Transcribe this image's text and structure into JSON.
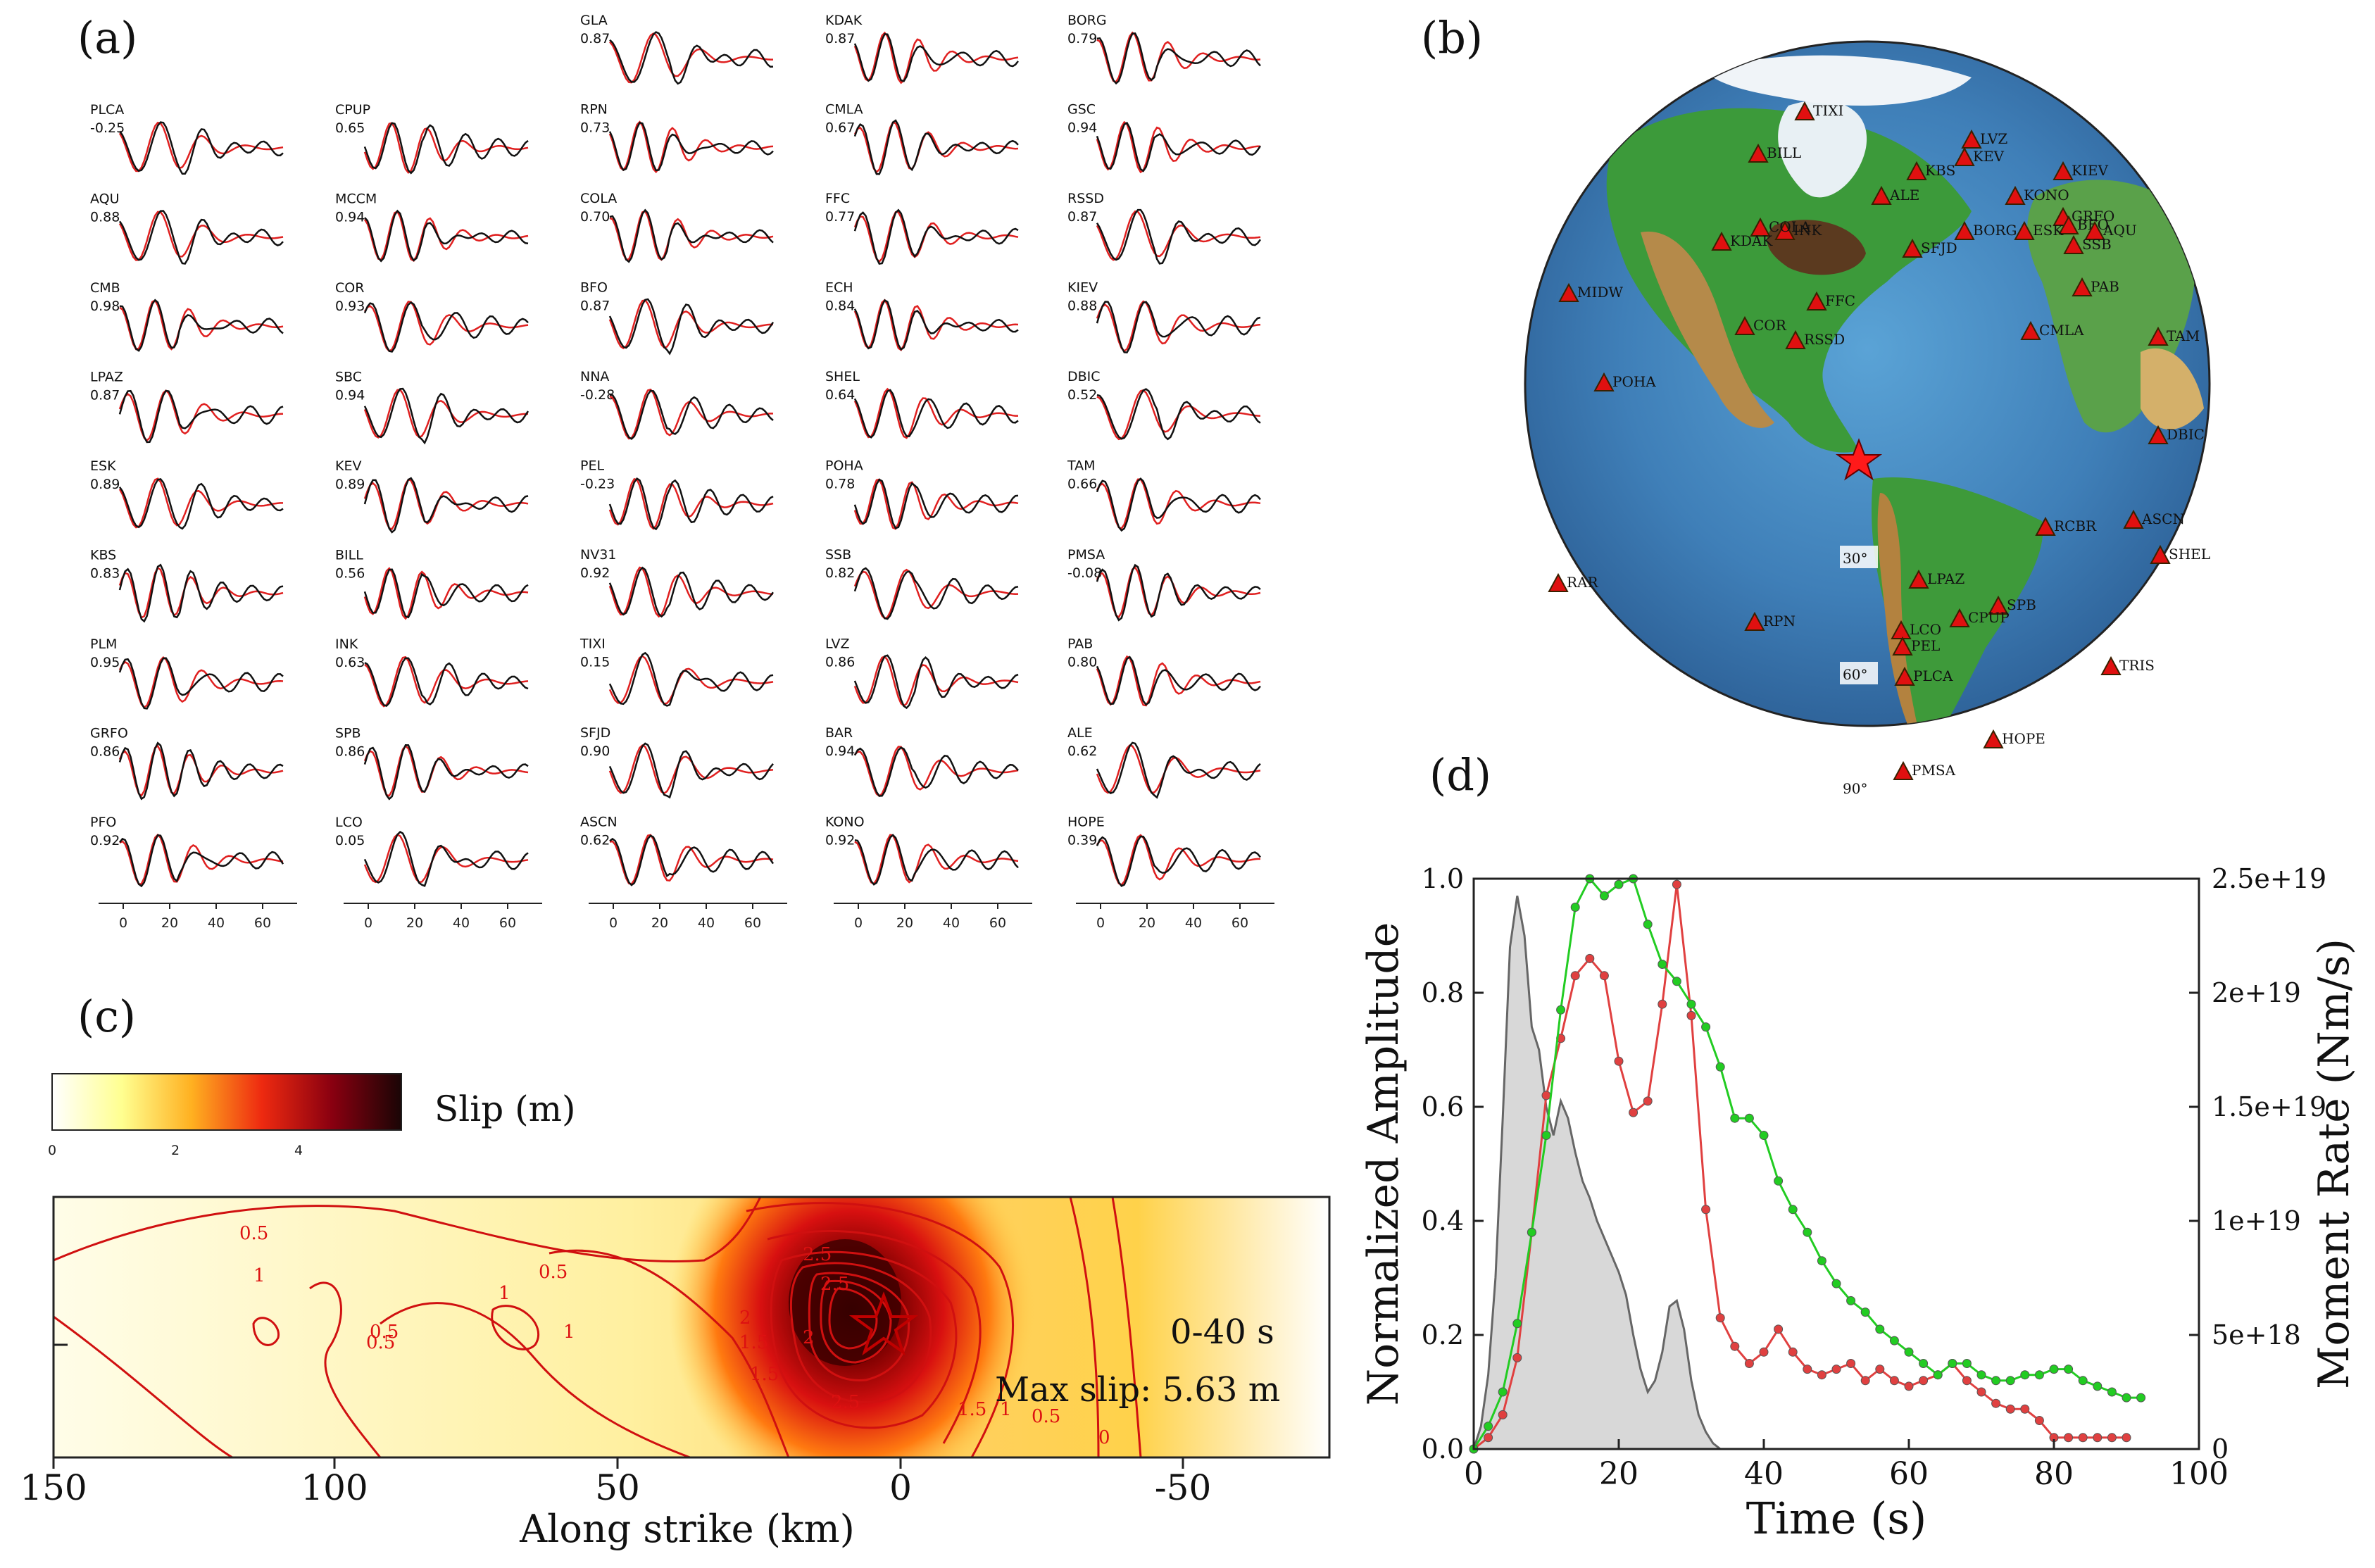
{
  "labels": {
    "a": "(a)",
    "b": "(b)",
    "c": "(c)",
    "d": "(d)"
  },
  "colors": {
    "observed": "#111111",
    "synthetic": "#e02020",
    "contour": "#d01010",
    "green": "#22cc22",
    "red_stf": "#e04040",
    "gray": "#888888"
  },
  "panel_a": {
    "x_ticks": [
      "0",
      "20",
      "40",
      "60"
    ],
    "columns": [
      [
        {
          "name": "PLCA",
          "cc": "-0.25"
        },
        {
          "name": "AQU",
          "cc": "0.88"
        },
        {
          "name": "CMB",
          "cc": "0.98"
        },
        {
          "name": "LPAZ",
          "cc": "0.87"
        },
        {
          "name": "ESK",
          "cc": "0.89"
        },
        {
          "name": "KBS",
          "cc": "0.83"
        },
        {
          "name": "PLM",
          "cc": "0.95"
        },
        {
          "name": "GRFO",
          "cc": "0.86"
        },
        {
          "name": "PFO",
          "cc": "0.92"
        }
      ],
      [
        {
          "name": "CPUP",
          "cc": "0.65"
        },
        {
          "name": "MCCM",
          "cc": "0.94"
        },
        {
          "name": "COR",
          "cc": "0.93"
        },
        {
          "name": "SBC",
          "cc": "0.94"
        },
        {
          "name": "KEV",
          "cc": "0.89"
        },
        {
          "name": "BILL",
          "cc": "0.56"
        },
        {
          "name": "INK",
          "cc": "0.63"
        },
        {
          "name": "SPB",
          "cc": "0.86"
        },
        {
          "name": "LCO",
          "cc": "0.05"
        }
      ],
      [
        {
          "name": "GLA",
          "cc": "0.87"
        },
        {
          "name": "RPN",
          "cc": "0.73"
        },
        {
          "name": "COLA",
          "cc": "0.70"
        },
        {
          "name": "BFO",
          "cc": "0.87"
        },
        {
          "name": "NNA",
          "cc": "-0.28"
        },
        {
          "name": "PEL",
          "cc": "-0.23"
        },
        {
          "name": "NV31",
          "cc": "0.92"
        },
        {
          "name": "TIXI",
          "cc": "0.15"
        },
        {
          "name": "SFJD",
          "cc": "0.90"
        },
        {
          "name": "ASCN",
          "cc": "0.62"
        }
      ],
      [
        {
          "name": "KDAK",
          "cc": "0.87"
        },
        {
          "name": "CMLA",
          "cc": "0.67"
        },
        {
          "name": "FFC",
          "cc": "0.77"
        },
        {
          "name": "ECH",
          "cc": "0.84"
        },
        {
          "name": "SHEL",
          "cc": "0.64"
        },
        {
          "name": "POHA",
          "cc": "0.78"
        },
        {
          "name": "SSB",
          "cc": "0.82"
        },
        {
          "name": "LVZ",
          "cc": "0.86"
        },
        {
          "name": "BAR",
          "cc": "0.94"
        },
        {
          "name": "KONO",
          "cc": "0.92"
        }
      ],
      [
        {
          "name": "BORG",
          "cc": "0.79"
        },
        {
          "name": "GSC",
          "cc": "0.94"
        },
        {
          "name": "RSSD",
          "cc": "0.87"
        },
        {
          "name": "KIEV",
          "cc": "0.88"
        },
        {
          "name": "DBIC",
          "cc": "0.52"
        },
        {
          "name": "TAM",
          "cc": "0.66"
        },
        {
          "name": "PMSA",
          "cc": "-0.08"
        },
        {
          "name": "PAB",
          "cc": "0.80"
        },
        {
          "name": "ALE",
          "cc": "0.62"
        },
        {
          "name": "HOPE",
          "cc": "0.39"
        }
      ]
    ]
  },
  "panel_b": {
    "lat_labels": [
      "30°",
      "60°",
      "90°"
    ],
    "stations": [
      "TIXI",
      "BILL",
      "KBS",
      "LVZ",
      "KEV",
      "KIEV",
      "ALE",
      "KONO",
      "GRFO",
      "BFO",
      "AQU",
      "ESK",
      "SSB",
      "INK",
      "COLA",
      "KDAK",
      "SFJD",
      "BORG",
      "MIDW",
      "FFC",
      "PAB",
      "TAM",
      "COR",
      "RSSD",
      "CMLA",
      "POHA",
      "DBIC",
      "ASCN",
      "RCBR",
      "SHEL",
      "LPAZ",
      "RAR",
      "RPN",
      "SPB",
      "CPUP",
      "LCO",
      "PEL",
      "TRIS",
      "PLCA",
      "HOPE",
      "PMSA"
    ]
  },
  "panel_c": {
    "colorbar_title": "Slip (m)",
    "colorbar_ticks": [
      "0",
      "2",
      "4"
    ],
    "time_window": "0-40 s",
    "max_slip": "Max slip: 5.63 m",
    "xlabel": "Along strike (km)",
    "x_ticks": [
      "150",
      "100",
      "50",
      "0",
      "-50"
    ],
    "contour_labels": [
      "0.5",
      "0.5",
      "1",
      "0.5",
      "1",
      "0.5",
      "1",
      "1.5",
      "2",
      "2.5",
      "2.5",
      "2",
      "1.5",
      "2.5",
      "1.5",
      "1",
      "0.5",
      "0"
    ]
  },
  "chart_data": {
    "type": "line",
    "title": "",
    "xlabel": "Time (s)",
    "ylabel": "Normalized Amplitude",
    "y2label": "Moment Rate (Nm/s)",
    "xlim": [
      0,
      100
    ],
    "ylim": [
      0,
      1.0
    ],
    "y2lim": [
      0,
      2.5e+19
    ],
    "x_ticks": [
      "0",
      "20",
      "40",
      "60",
      "80",
      "100"
    ],
    "y_ticks": [
      "0.0",
      "0.2",
      "0.4",
      "0.6",
      "0.8",
      "1.0"
    ],
    "y2_ticks": [
      "0",
      "5e+18",
      "1e+19",
      "1.5e+19",
      "2e+19",
      "2.5e+19"
    ],
    "series": [
      {
        "name": "moment rate (gray)",
        "style": "filled-area",
        "x": [
          0,
          1,
          2,
          3,
          4,
          5,
          6,
          7,
          8,
          9,
          10,
          11,
          12,
          13,
          14,
          15,
          16,
          17,
          18,
          19,
          20,
          21,
          22,
          23,
          24,
          25,
          26,
          27,
          28,
          29,
          30,
          31,
          32,
          33,
          34
        ],
        "y": [
          0.0,
          0.04,
          0.13,
          0.3,
          0.58,
          0.88,
          0.97,
          0.9,
          0.74,
          0.7,
          0.6,
          0.55,
          0.61,
          0.58,
          0.52,
          0.47,
          0.44,
          0.4,
          0.37,
          0.34,
          0.31,
          0.27,
          0.2,
          0.14,
          0.1,
          0.12,
          0.17,
          0.25,
          0.26,
          0.21,
          0.12,
          0.06,
          0.03,
          0.01,
          0.0
        ]
      },
      {
        "name": "red",
        "style": "dotted-line",
        "x": [
          0,
          2,
          4,
          6,
          8,
          10,
          12,
          14,
          16,
          18,
          20,
          22,
          24,
          26,
          28,
          30,
          32,
          34,
          36,
          38,
          40,
          42,
          44,
          46,
          48,
          50,
          52,
          54,
          56,
          58,
          60,
          62,
          64,
          66,
          68,
          70,
          72,
          74,
          76,
          78,
          80,
          82,
          84,
          86,
          88,
          90
        ],
        "y": [
          0.0,
          0.02,
          0.06,
          0.16,
          0.38,
          0.62,
          0.72,
          0.83,
          0.86,
          0.83,
          0.68,
          0.59,
          0.61,
          0.78,
          0.99,
          0.76,
          0.42,
          0.23,
          0.18,
          0.15,
          0.17,
          0.21,
          0.17,
          0.14,
          0.13,
          0.14,
          0.15,
          0.12,
          0.14,
          0.12,
          0.11,
          0.12,
          0.13,
          0.15,
          0.12,
          0.1,
          0.08,
          0.07,
          0.07,
          0.05,
          0.02,
          0.02,
          0.02,
          0.02,
          0.02,
          0.02
        ]
      },
      {
        "name": "green",
        "style": "dotted-line",
        "x": [
          0,
          2,
          4,
          6,
          8,
          10,
          12,
          14,
          16,
          18,
          20,
          22,
          24,
          26,
          28,
          30,
          32,
          34,
          36,
          38,
          40,
          42,
          44,
          46,
          48,
          50,
          52,
          54,
          56,
          58,
          60,
          62,
          64,
          66,
          68,
          70,
          72,
          74,
          76,
          78,
          80,
          82,
          84,
          86,
          88,
          90,
          92
        ],
        "y": [
          0.0,
          0.04,
          0.1,
          0.22,
          0.38,
          0.55,
          0.77,
          0.95,
          1.0,
          0.97,
          0.99,
          1.0,
          0.92,
          0.85,
          0.82,
          0.78,
          0.74,
          0.67,
          0.58,
          0.58,
          0.55,
          0.47,
          0.42,
          0.38,
          0.33,
          0.29,
          0.26,
          0.24,
          0.21,
          0.19,
          0.17,
          0.15,
          0.13,
          0.15,
          0.15,
          0.13,
          0.12,
          0.12,
          0.13,
          0.13,
          0.14,
          0.14,
          0.12,
          0.11,
          0.1,
          0.09,
          0.09
        ]
      }
    ]
  }
}
